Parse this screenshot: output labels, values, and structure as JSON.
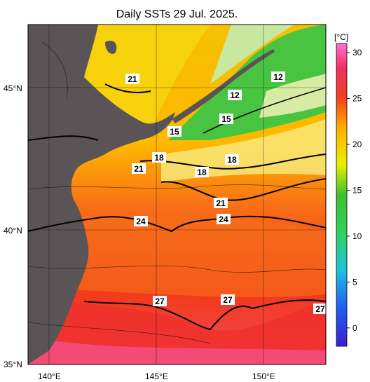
{
  "title": "Daily SSTs 29 Jul. 2025.",
  "lat_labels": [
    "45°N",
    "40°N",
    "35°N"
  ],
  "lon_labels": [
    "140°E",
    "145°E",
    "150°E"
  ],
  "colorbar": {
    "unit": "[°C]",
    "ticks": [
      "30",
      "25",
      "20",
      "15",
      "10",
      "5",
      "0"
    ],
    "range": [
      -2,
      31
    ]
  },
  "contour_labels": [
    "21",
    "12",
    "12",
    "15",
    "15",
    "18",
    "21",
    "18",
    "18",
    "21",
    "24",
    "24",
    "27",
    "27",
    "27"
  ],
  "colors": {
    "land": "#5a5456",
    "warm": "#f2401a",
    "hot": "#ff66b4",
    "yellow": "#f5d400",
    "green": "#3fbf3f"
  }
}
